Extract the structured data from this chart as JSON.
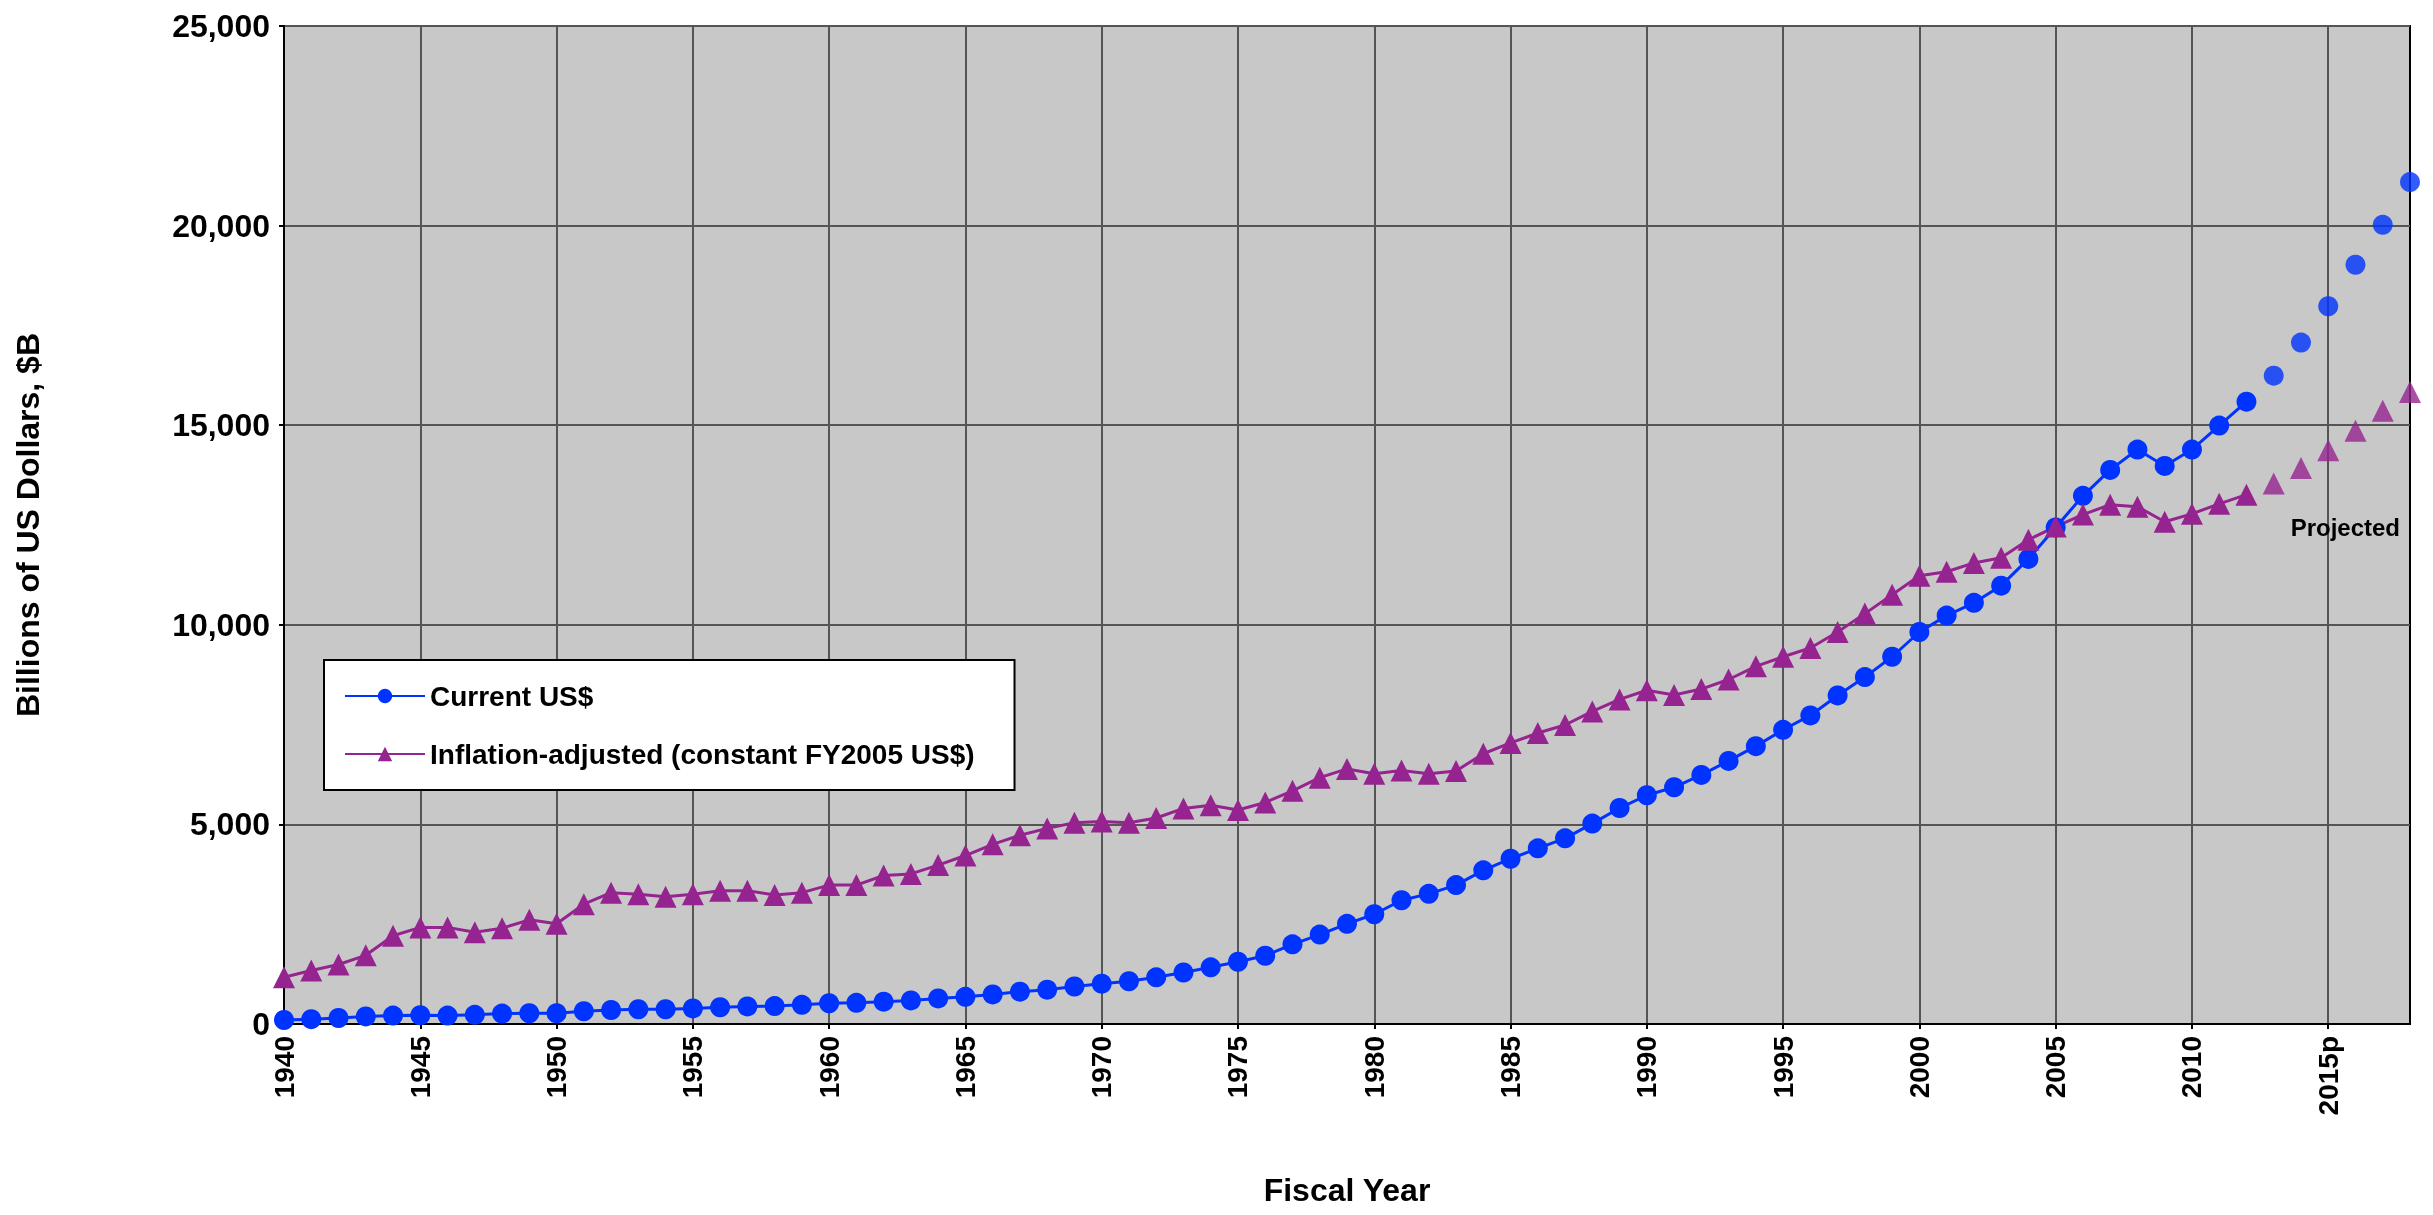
{
  "chart_data": {
    "type": "line",
    "xlabel": "Fiscal Year",
    "ylabel": "Billions of US Dollars, $B",
    "xlim": [
      1940,
      2018
    ],
    "xticks": [
      1940,
      1945,
      1950,
      1955,
      1960,
      1965,
      1970,
      1975,
      1980,
      1985,
      1990,
      1995,
      2000,
      2005,
      2010,
      {
        "value": 2015,
        "label": "2015p"
      }
    ],
    "ylim": [
      0,
      25000
    ],
    "yticks": [
      0,
      {
        "value": 5000,
        "label": "5,000"
      },
      {
        "value": 10000,
        "label": "10,000"
      },
      {
        "value": 15000,
        "label": "15,000"
      },
      {
        "value": 20000,
        "label": "20,000"
      },
      {
        "value": 25000,
        "label": "25,000"
      }
    ],
    "grid": true,
    "legend": "left",
    "annotations": [
      "Projected"
    ],
    "series": [
      {
        "name": "Current US$",
        "color": "#0033ff",
        "marker": "circle",
        "x": [
          1940,
          1941,
          1942,
          1943,
          1944,
          1945,
          1946,
          1947,
          1948,
          1949,
          1950,
          1951,
          1952,
          1953,
          1954,
          1955,
          1956,
          1957,
          1958,
          1959,
          1960,
          1961,
          1962,
          1963,
          1964,
          1965,
          1966,
          1967,
          1968,
          1969,
          1970,
          1971,
          1972,
          1973,
          1974,
          1975,
          1976,
          1977,
          1978,
          1979,
          1980,
          1981,
          1982,
          1983,
          1984,
          1985,
          1986,
          1987,
          1988,
          1989,
          1990,
          1991,
          1992,
          1993,
          1994,
          1995,
          1996,
          1997,
          1998,
          1999,
          2000,
          2001,
          2002,
          2003,
          2004,
          2005,
          2006,
          2007,
          2008,
          2009,
          2010,
          2011,
          2012
        ],
        "values": [
          100,
          120,
          150,
          190,
          210,
          220,
          210,
          230,
          260,
          270,
          270,
          320,
          350,
          370,
          370,
          390,
          420,
          440,
          450,
          480,
          520,
          530,
          560,
          590,
          640,
          680,
          740,
          810,
          860,
          940,
          1010,
          1070,
          1170,
          1290,
          1420,
          1560,
          1710,
          1995,
          2240,
          2510,
          2750,
          3100,
          3260,
          3480,
          3850,
          4140,
          4400,
          4650,
          5020,
          5410,
          5730,
          5930,
          6240,
          6590,
          6960,
          7370,
          7730,
          8230,
          8690,
          9200,
          9820,
          10230,
          10550,
          10980,
          11650,
          12440,
          13230,
          13880,
          14390,
          13980,
          14390,
          14990,
          15590
        ]
      },
      {
        "name": "Inflation-adjusted (constant FY2005 US$)",
        "color": "#952490",
        "marker": "triangle",
        "x": [
          1940,
          1941,
          1942,
          1943,
          1944,
          1945,
          1946,
          1947,
          1948,
          1949,
          1950,
          1951,
          1952,
          1953,
          1954,
          1955,
          1956,
          1957,
          1958,
          1959,
          1960,
          1961,
          1962,
          1963,
          1964,
          1965,
          1966,
          1967,
          1968,
          1969,
          1970,
          1971,
          1972,
          1973,
          1974,
          1975,
          1976,
          1977,
          1978,
          1979,
          1980,
          1981,
          1982,
          1983,
          1984,
          1985,
          1986,
          1987,
          1988,
          1989,
          1990,
          1991,
          1992,
          1993,
          1994,
          1995,
          1996,
          1997,
          1998,
          1999,
          2000,
          2001,
          2002,
          2003,
          2004,
          2005,
          2006,
          2007,
          2008,
          2009,
          2010,
          2011,
          2012
        ],
        "values": [
          1170,
          1340,
          1490,
          1720,
          2210,
          2420,
          2420,
          2300,
          2400,
          2610,
          2510,
          3000,
          3290,
          3250,
          3190,
          3250,
          3340,
          3340,
          3230,
          3290,
          3480,
          3480,
          3720,
          3760,
          3980,
          4220,
          4500,
          4730,
          4900,
          5040,
          5070,
          5040,
          5160,
          5400,
          5480,
          5360,
          5550,
          5840,
          6170,
          6390,
          6270,
          6350,
          6270,
          6340,
          6770,
          7040,
          7290,
          7490,
          7830,
          8130,
          8360,
          8240,
          8390,
          8630,
          8960,
          9200,
          9420,
          9820,
          10280,
          10750,
          11230,
          11330,
          11550,
          11680,
          12130,
          12460,
          12760,
          13010,
          12960,
          12580,
          12780,
          13030,
          13260
        ]
      },
      {
        "type": "scatter",
        "color": "#0033ff",
        "marker": "circle",
        "x": [
          2013,
          2014,
          2015,
          2016,
          2017,
          2018
        ],
        "values": [
          16240,
          17070,
          17980,
          19020,
          20020,
          21090
        ]
      },
      {
        "type": "scatter",
        "color": "#952490",
        "marker": "triangle",
        "x": [
          2013,
          2014,
          2015,
          2016,
          2017,
          2018
        ],
        "values": [
          13540,
          13930,
          14370,
          14860,
          15360,
          15830
        ]
      }
    ]
  }
}
